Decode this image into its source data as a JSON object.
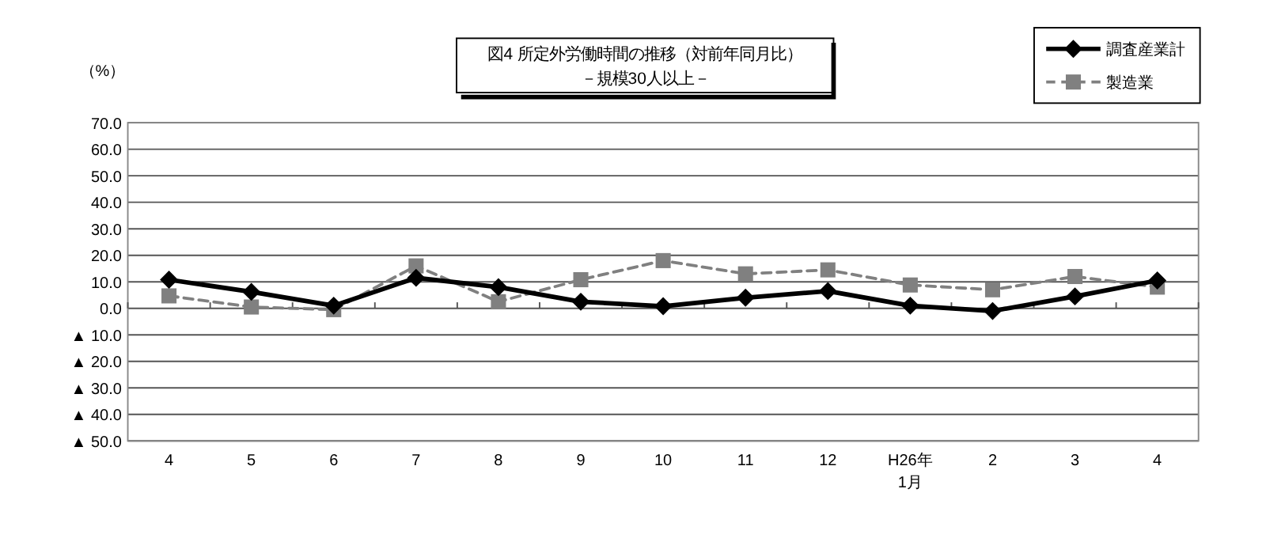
{
  "chart_data": {
    "type": "line",
    "title": "図4  所定外労働時間の推移（対前年同月比）",
    "subtitle": "－規模30人以上－",
    "ylabel": "（%）",
    "categories": [
      "4",
      "5",
      "6",
      "7",
      "8",
      "9",
      "10",
      "11",
      "12",
      "H26年\n1月",
      "2",
      "3",
      "4"
    ],
    "series": [
      {
        "name": "調査産業計",
        "color": "#000000",
        "marker": "diamond",
        "line_style": "solid",
        "values": [
          10.8,
          6.2,
          1.0,
          11.5,
          8.0,
          2.5,
          0.8,
          4.0,
          6.5,
          1.0,
          -1.0,
          4.5,
          10.5
        ]
      },
      {
        "name": "製造業",
        "color": "#808080",
        "marker": "square",
        "line_style": "dashed",
        "values": [
          4.7,
          0.5,
          -0.5,
          16.0,
          2.5,
          10.8,
          18.0,
          13.0,
          14.5,
          8.8,
          7.0,
          12.0,
          8.0
        ]
      }
    ],
    "ylim": [
      -50,
      70
    ],
    "yticks": [
      {
        "value": -50,
        "label": "▲ 50.0"
      },
      {
        "value": -40,
        "label": "▲ 40.0"
      },
      {
        "value": -30,
        "label": "▲ 30.0"
      },
      {
        "value": -20,
        "label": "▲ 20.0"
      },
      {
        "value": -10,
        "label": "▲ 10.0"
      },
      {
        "value": 0,
        "label": "0.0"
      },
      {
        "value": 10,
        "label": "10.0"
      },
      {
        "value": 20,
        "label": "20.0"
      },
      {
        "value": 30,
        "label": "30.0"
      },
      {
        "value": 40,
        "label": "40.0"
      },
      {
        "value": 50,
        "label": "50.0"
      },
      {
        "value": 60,
        "label": "60.0"
      },
      {
        "value": 70,
        "label": "70.0"
      }
    ],
    "grid": "y",
    "legend": "top right"
  }
}
